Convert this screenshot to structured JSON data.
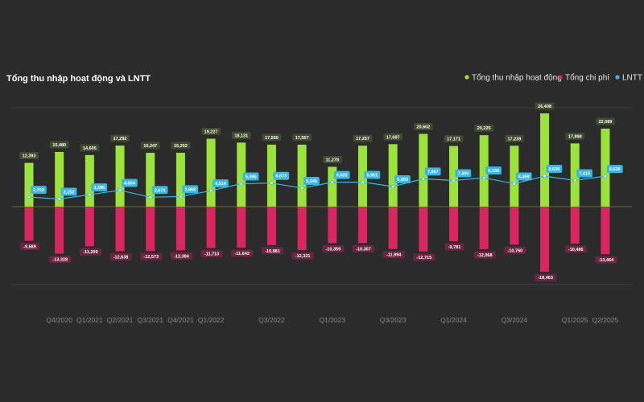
{
  "chart_data": {
    "type": "bar",
    "title": "Tổng thu nhập hoạt động và LNTT",
    "colors": {
      "income": "#9be23a",
      "expense": "#d92661",
      "profit": "#38b6e6",
      "income_label_bg": "#3f4a2e",
      "expense_label_bg": "#6b2540",
      "background": "#2b2b2b",
      "grid": "#444444",
      "zero_line": "#5d6a3e"
    },
    "legend": [
      {
        "name": "Tổng thu nhập hoạt động",
        "color": "#9be23a"
      },
      {
        "name": "Tổng chi phí",
        "color": "#d92661"
      },
      {
        "name": "LNTT",
        "color": "#38b6e6"
      }
    ],
    "legend_position": "top-right",
    "ylim": [
      -22000,
      28000
    ],
    "x_tick_labels": [
      "",
      "Q4/2020",
      "Q1/2021",
      "Q2/2021",
      "Q3/2021",
      "Q4/2021",
      "Q1/2022",
      "",
      "Q3/2022",
      "",
      "Q1/2023",
      "",
      "Q3/2023",
      "",
      "Q1/2024",
      "",
      "Q3/2024",
      "",
      "Q1/2025",
      "Q2/2025"
    ],
    "series": [
      {
        "name": "Tổng thu nhập hoạt động",
        "values": [
          12393,
          15480,
          14605,
          17292,
          15247,
          15252,
          19227,
          18131,
          17555,
          17557,
          11278,
          17257,
          17687,
          20602,
          17171,
          20225,
          17239,
          26408,
          17898,
          22089
        ],
        "labels": [
          "12,393",
          "15,480",
          "14,605",
          "17,292",
          "15,247",
          "15,252",
          "19,227",
          "18,131",
          "17,555",
          "17,557",
          "11,278",
          "17,257",
          "17,687",
          "20,602",
          "17,171",
          "20,225",
          "17,239",
          "26,408",
          "17,898",
          "22,089"
        ]
      },
      {
        "name": "Tổng chi phí",
        "values": [
          -9689,
          -13328,
          -11209,
          -12638,
          -12573,
          -12384,
          -11713,
          -11642,
          -10881,
          -12321,
          -10359,
          -10307,
          -11994,
          -12715,
          -9781,
          -12068,
          -10760,
          -18463,
          -10485,
          -13464
        ],
        "labels": [
          "-9,689",
          "-13,328",
          "-11,209",
          "-12,638",
          "-12,573",
          "-12,384",
          "-11,713",
          "-11,642",
          "-10,881",
          "-12,321",
          "-10,359",
          "-10,307",
          "-11,994",
          "-12,715",
          "-9,781",
          "-12,068",
          "-10,760",
          "-18,463",
          "-10,485",
          "-13,464"
        ]
      },
      {
        "name": "LNTT",
        "values": [
          2703,
          2152,
          3396,
          4654,
          2674,
          2868,
          4514,
          6490,
          6673,
          5246,
          6920,
          6951,
          5693,
          7887,
          7390,
          8158,
          6499,
          8638,
          7413,
          8626
        ],
        "labels": [
          "2,703",
          "2,152",
          "3,396",
          "4,654",
          "2,674",
          "2,868",
          "4,514",
          "6,490",
          "6,673",
          "5,246",
          "6,920",
          "6,951",
          "5,693",
          "7,887",
          "7,390",
          "8,158",
          "6,499",
          "8,638",
          "7,413",
          "8,626"
        ]
      }
    ]
  }
}
